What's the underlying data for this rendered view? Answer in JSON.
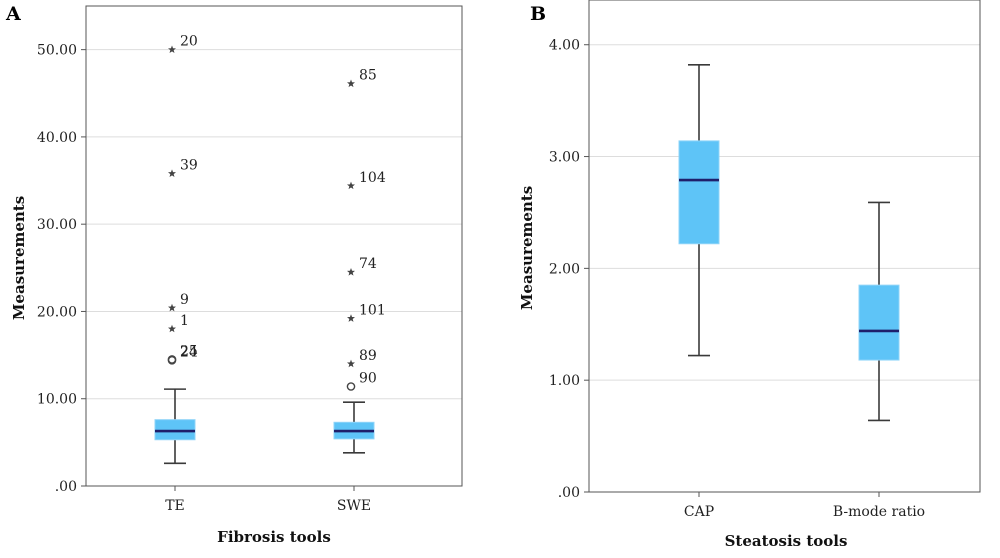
{
  "chart_data": [
    {
      "type": "box",
      "panel_label": "A",
      "xlabel": "Fibrosis tools",
      "ylabel": "Measurements",
      "ylim": [
        0,
        55
      ],
      "yticks": [
        0,
        10,
        20,
        30,
        40,
        50
      ],
      "ytick_labels": [
        ".00",
        "10.00",
        "20.00",
        "30.00",
        "40.00",
        "50.00"
      ],
      "grid": "horizontal",
      "categories": [
        "TE",
        "SWE"
      ],
      "boxes": [
        {
          "category": "TE",
          "whisker_low": 2.6,
          "q1": 5.3,
          "median": 6.3,
          "q3": 7.6,
          "whisker_high": 11.1,
          "outliers": [
            {
              "value": 14.5,
              "label": "25",
              "marker": "circle"
            },
            {
              "value": 14.4,
              "label": "24",
              "marker": "circle"
            },
            {
              "value": 18.0,
              "label": "1",
              "marker": "star"
            },
            {
              "value": 20.4,
              "label": "9",
              "marker": "star"
            },
            {
              "value": 35.8,
              "label": "39",
              "marker": "star"
            },
            {
              "value": 50.0,
              "label": "20",
              "marker": "star"
            }
          ]
        },
        {
          "category": "SWE",
          "whisker_low": 3.8,
          "q1": 5.4,
          "median": 6.3,
          "q3": 7.3,
          "whisker_high": 9.6,
          "outliers": [
            {
              "value": 11.4,
              "label": "90",
              "marker": "circle"
            },
            {
              "value": 14.0,
              "label": "89",
              "marker": "star"
            },
            {
              "value": 19.2,
              "label": "101",
              "marker": "star"
            },
            {
              "value": 24.5,
              "label": "74",
              "marker": "star"
            },
            {
              "value": 34.4,
              "label": "104",
              "marker": "star"
            },
            {
              "value": 46.1,
              "label": "85",
              "marker": "star"
            }
          ]
        }
      ]
    },
    {
      "type": "box",
      "panel_label": "B",
      "xlabel": "Steatosis tools",
      "ylabel": "Measurements",
      "ylim": [
        0,
        4.4
      ],
      "yticks": [
        0,
        1,
        2,
        3,
        4
      ],
      "ytick_labels": [
        ".00",
        "1.00",
        "2.00",
        "3.00",
        "4.00"
      ],
      "grid": "horizontal",
      "categories": [
        "CAP",
        "B-mode ratio"
      ],
      "boxes": [
        {
          "category": "CAP",
          "whisker_low": 1.22,
          "q1": 2.22,
          "median": 2.79,
          "q3": 3.14,
          "whisker_high": 3.82,
          "outliers": []
        },
        {
          "category": "B-mode ratio",
          "whisker_low": 0.64,
          "q1": 1.18,
          "median": 1.44,
          "q3": 1.85,
          "whisker_high": 2.59,
          "outliers": []
        }
      ]
    }
  ],
  "colors": {
    "box_fill": "#5ec4f7",
    "box_edge": "#8fd4f8",
    "median": "#1f1f6b",
    "whisker": "#3a3a3a",
    "grid": "#dddddd",
    "axis": "#555555",
    "outlier": "#444444"
  }
}
